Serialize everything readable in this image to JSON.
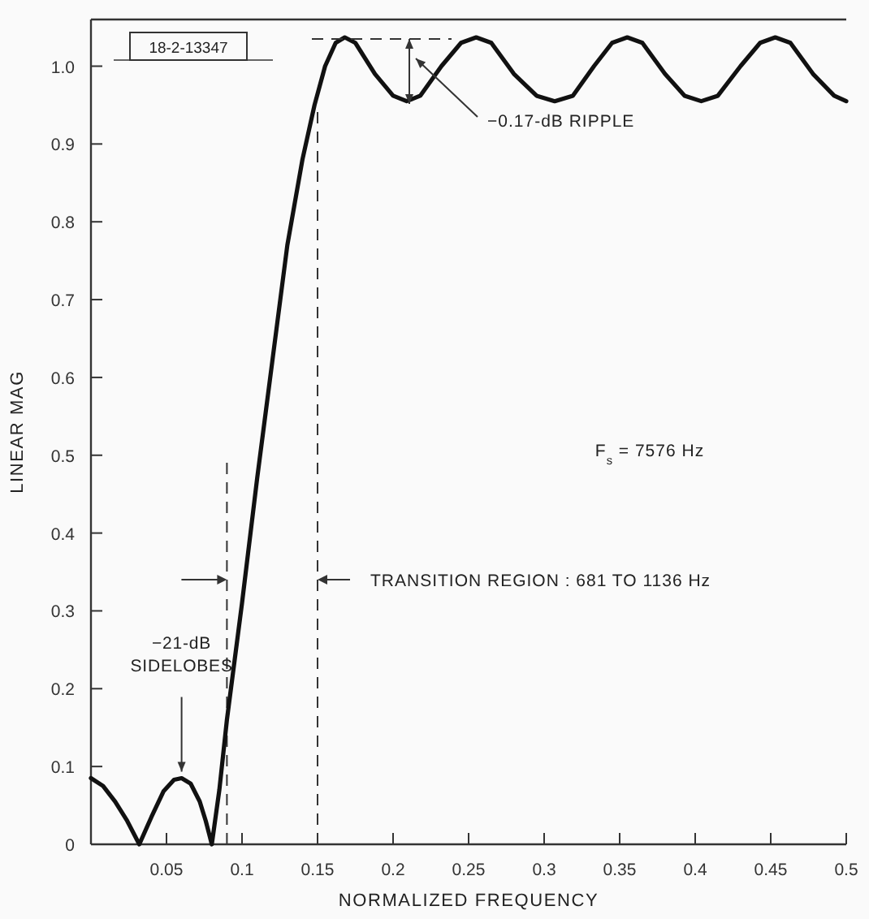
{
  "chart_data": {
    "type": "line",
    "xlabel": "NORMALIZED FREQUENCY",
    "ylabel": "LINEAR MAG",
    "x": [
      0,
      0.008,
      0.016,
      0.024,
      0.032,
      0.04,
      0.048,
      0.055,
      0.06,
      0.066,
      0.072,
      0.076,
      0.08,
      0.085,
      0.09,
      0.1,
      0.11,
      0.12,
      0.13,
      0.14,
      0.148,
      0.155,
      0.162,
      0.168,
      0.175,
      0.188,
      0.2,
      0.209,
      0.218,
      0.232,
      0.245,
      0.255,
      0.265,
      0.28,
      0.295,
      0.307,
      0.319,
      0.333,
      0.345,
      0.355,
      0.365,
      0.38,
      0.393,
      0.404,
      0.415,
      0.43,
      0.443,
      0.453,
      0.463,
      0.478,
      0.492,
      0.5
    ],
    "series": [
      {
        "color": "#111111",
        "values": [
          0.085,
          0.075,
          0.055,
          0.03,
          0,
          0.035,
          0.068,
          0.083,
          0.085,
          0.078,
          0.055,
          0.03,
          0,
          0.07,
          0.16,
          0.31,
          0.47,
          0.62,
          0.77,
          0.88,
          0.95,
          1.0,
          1.03,
          1.037,
          1.03,
          0.99,
          0.962,
          0.955,
          0.962,
          1.0,
          1.03,
          1.037,
          1.03,
          0.99,
          0.962,
          0.955,
          0.962,
          1.0,
          1.03,
          1.037,
          1.03,
          0.99,
          0.962,
          0.955,
          0.962,
          1.0,
          1.03,
          1.037,
          1.03,
          0.99,
          0.962,
          0.955
        ]
      }
    ],
    "xlim": [
      0,
      0.5
    ],
    "ylim": [
      0,
      1.06
    ],
    "xticks": [
      0.05,
      0.1,
      0.15,
      0.2,
      0.25,
      0.3,
      0.35,
      0.4,
      0.45,
      0.5
    ],
    "yticks": [
      0,
      0.1,
      0.2,
      0.3,
      0.4,
      0.5,
      0.6,
      0.7,
      0.8,
      0.9,
      {
        "value": 1,
        "label": "1.0"
      }
    ],
    "ref_lines": [
      {
        "axis": "x",
        "value": 0.09,
        "line_style": "dashed"
      },
      {
        "axis": "x",
        "value": 0.15,
        "line_style": "dashed"
      }
    ],
    "annotations": [
      "18-2-13347",
      "−0.17-dB RIPPLE",
      {
        "text": "−21-dB SIDELOBES",
        "x": 0.06,
        "y": 0.085
      },
      "F$_{s}$ = 7576 Hz",
      "TRANSITION REGION : 681 TO 1136 Hz"
    ],
    "marker": "none",
    "line_style": "solid"
  }
}
